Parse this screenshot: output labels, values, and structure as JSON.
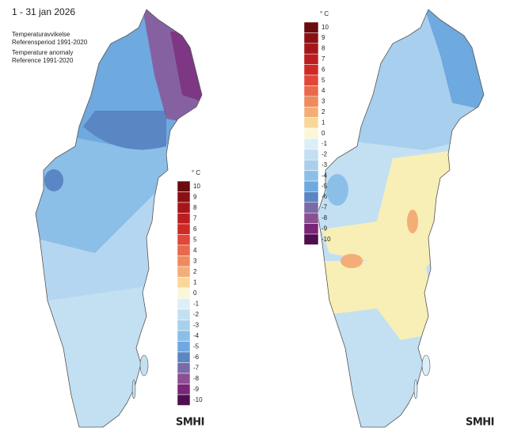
{
  "title": "1 - 31 jan 2026",
  "subtitle_sv": [
    "Temperaturavvikelse",
    "Referensperiod 1991-2020"
  ],
  "subtitle_en": [
    "Temperature anomaly",
    "Reference 1991-2020"
  ],
  "logos": [
    "SMHI",
    "SMHI"
  ],
  "legends": [
    {
      "unit": "° C",
      "steps": [
        {
          "value": 10,
          "color": "#6b0a0f"
        },
        {
          "value": 9,
          "color": "#8b1014"
        },
        {
          "value": 8,
          "color": "#a5161a"
        },
        {
          "value": 7,
          "color": "#bb1e20"
        },
        {
          "value": 6,
          "color": "#d02a26"
        },
        {
          "value": 5,
          "color": "#e0473a"
        },
        {
          "value": 4,
          "color": "#e8694c"
        },
        {
          "value": 3,
          "color": "#ef8a5e"
        },
        {
          "value": 2,
          "color": "#f3ae78"
        },
        {
          "value": 1,
          "color": "#f8d89a"
        },
        {
          "value": 0,
          "color": "#fbf7d6"
        },
        {
          "value": -1,
          "color": "#dceef8"
        },
        {
          "value": -2,
          "color": "#c3e0f3"
        },
        {
          "value": -3,
          "color": "#a8d0ee"
        },
        {
          "value": -4,
          "color": "#8cbfe8"
        },
        {
          "value": -5,
          "color": "#6ea9df"
        },
        {
          "value": -6,
          "color": "#5a86c4"
        },
        {
          "value": -7,
          "color": "#7a6aa8"
        },
        {
          "value": -8,
          "color": "#8c4f92"
        },
        {
          "value": -9,
          "color": "#7a2577"
        },
        {
          "value": -10,
          "color": "#4e0f4e"
        }
      ]
    },
    {
      "unit": "° C",
      "steps": [
        {
          "value": 10,
          "color": "#6b0a0f"
        },
        {
          "value": 9,
          "color": "#8b1014"
        },
        {
          "value": 8,
          "color": "#a5161a"
        },
        {
          "value": 7,
          "color": "#bb1e20"
        },
        {
          "value": 6,
          "color": "#d02a26"
        },
        {
          "value": 5,
          "color": "#e0473a"
        },
        {
          "value": 4,
          "color": "#e8694c"
        },
        {
          "value": 3,
          "color": "#ef8a5e"
        },
        {
          "value": 2,
          "color": "#f3ae78"
        },
        {
          "value": 1,
          "color": "#f8d89a"
        },
        {
          "value": 0,
          "color": "#fbf7d6"
        },
        {
          "value": -1,
          "color": "#dceef8"
        },
        {
          "value": -2,
          "color": "#c3e0f3"
        },
        {
          "value": -3,
          "color": "#a8d0ee"
        },
        {
          "value": -4,
          "color": "#8cbfe8"
        },
        {
          "value": -5,
          "color": "#6ea9df"
        },
        {
          "value": -6,
          "color": "#5a86c4"
        },
        {
          "value": -7,
          "color": "#7a6aa8"
        },
        {
          "value": -8,
          "color": "#8c4f92"
        },
        {
          "value": -9,
          "color": "#7a2577"
        },
        {
          "value": -10,
          "color": "#4e0f4e"
        }
      ]
    }
  ]
}
